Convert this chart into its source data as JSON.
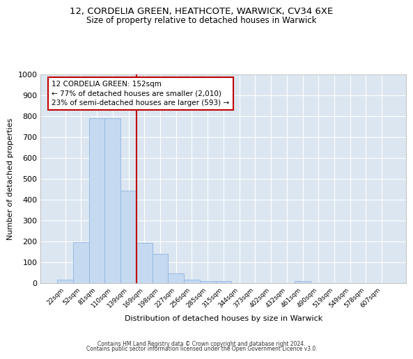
{
  "title1": "12, CORDELIA GREEN, HEATHCOTE, WARWICK, CV34 6XE",
  "title2": "Size of property relative to detached houses in Warwick",
  "xlabel": "Distribution of detached houses by size in Warwick",
  "ylabel": "Number of detached properties",
  "categories": [
    "22sqm",
    "52sqm",
    "81sqm",
    "110sqm",
    "139sqm",
    "169sqm",
    "198sqm",
    "227sqm",
    "256sqm",
    "285sqm",
    "315sqm",
    "344sqm",
    "373sqm",
    "402sqm",
    "432sqm",
    "461sqm",
    "490sqm",
    "519sqm",
    "549sqm",
    "578sqm",
    "607sqm"
  ],
  "values": [
    18,
    197,
    789,
    789,
    442,
    195,
    140,
    48,
    18,
    10,
    10,
    0,
    0,
    0,
    0,
    10,
    0,
    0,
    0,
    0,
    0
  ],
  "bar_color": "#c5d9f0",
  "bar_edge_color": "#8db4e2",
  "background_color": "#dce6f1",
  "grid_color": "#ffffff",
  "vline_x_idx": 4.5,
  "vline_color": "#c00000",
  "annotation_line1": "12 CORDELIA GREEN: 152sqm",
  "annotation_line2": "← 77% of detached houses are smaller (2,010)",
  "annotation_line3": "23% of semi-detached houses are larger (593) →",
  "annotation_box_color": "#ffffff",
  "annotation_box_edge": "#c00000",
  "ylim": [
    0,
    1000
  ],
  "yticks": [
    0,
    100,
    200,
    300,
    400,
    500,
    600,
    700,
    800,
    900,
    1000
  ],
  "footer_line1": "Contains HM Land Registry data © Crown copyright and database right 2024.",
  "footer_line2": "Contains public sector information licensed under the Open Government Licence v3.0."
}
